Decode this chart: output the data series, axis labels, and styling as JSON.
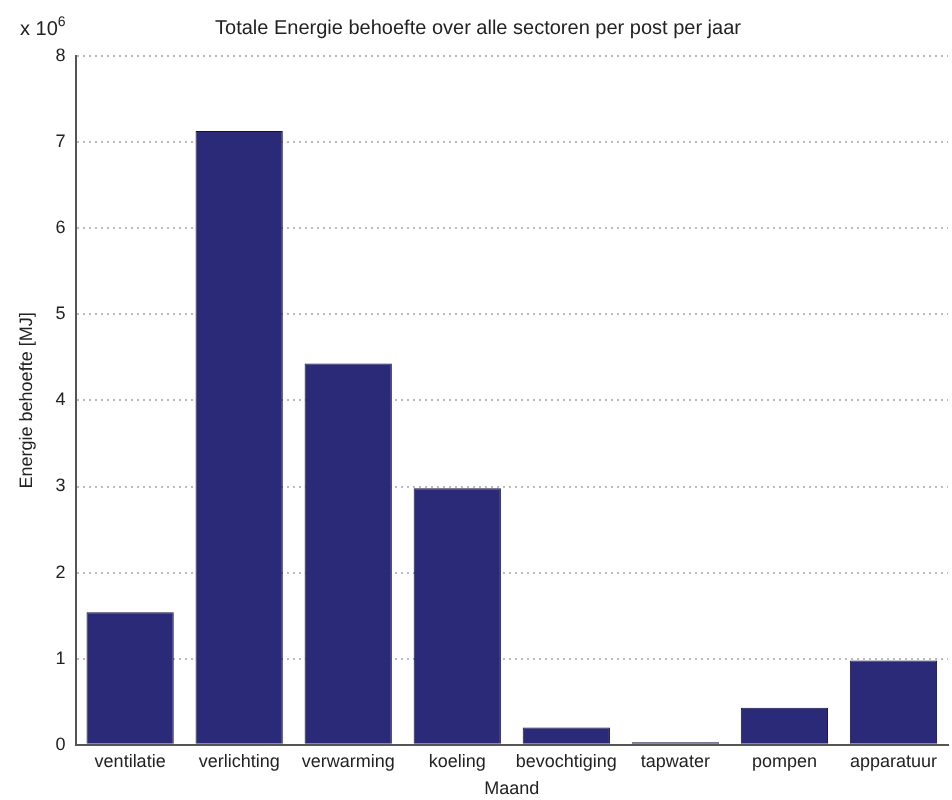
{
  "chart_data": {
    "type": "bar",
    "title": "Totale Energie behoefte over alle sectoren per post per jaar",
    "xlabel": "Maand",
    "ylabel": "Energie behoefte [MJ]",
    "annotations": [
      "x 10$^{6}$"
    ],
    "categories": [
      "ventilatie",
      "verlichting",
      "verwarming",
      "koeling",
      "bevochtiging",
      "tapwater",
      "pompen",
      "apparatuur"
    ],
    "values": [
      1.54,
      7.13,
      4.43,
      2.98,
      0.2,
      0.03,
      0.43,
      0.98
    ],
    "color": "#2a2a78",
    "ylim": [
      0,
      8
    ],
    "yticks": [
      0,
      1,
      2,
      3,
      4,
      5,
      6,
      7,
      8
    ],
    "grid": "y",
    "legend": false
  }
}
